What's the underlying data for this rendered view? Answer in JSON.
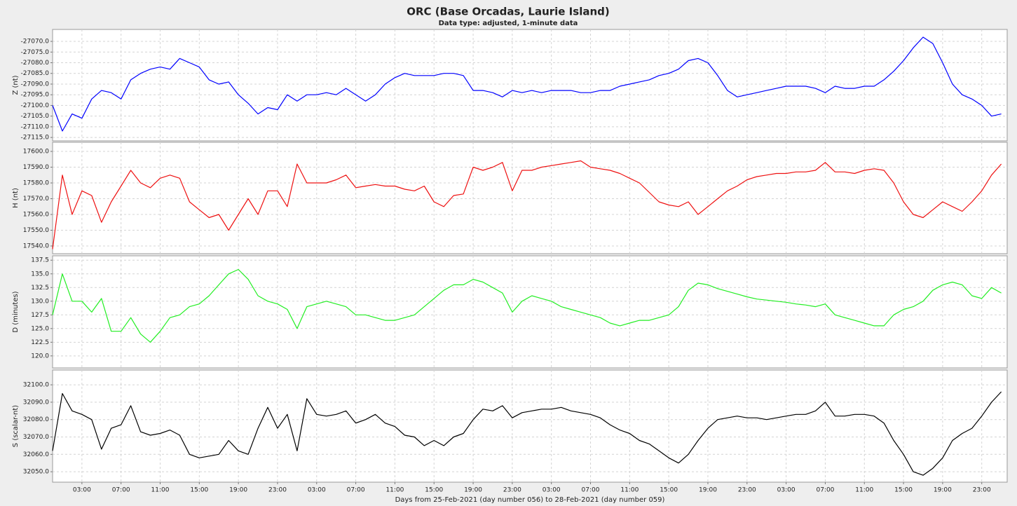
{
  "title": "ORC (Base Orcadas, Laurie Island)",
  "subtitle": "Data type: adjusted, 1-minute data",
  "chart_data": [
    {
      "type": "line",
      "ylabel": "Z (nt)",
      "color": "#0000ff",
      "grid": true,
      "ylim": [
        -27116.6,
        -27064.4
      ],
      "yticks": [
        {
          "value": -27070,
          "label": "-27070.0"
        },
        {
          "value": -27075,
          "label": "-27075.0"
        },
        {
          "value": -27080,
          "label": "-27080.0"
        },
        {
          "value": -27085,
          "label": "-27085.0"
        },
        {
          "value": -27090,
          "label": "-27090.0"
        },
        {
          "value": -27095,
          "label": "-27095.0"
        },
        {
          "value": -27100,
          "label": "-27100.0"
        },
        {
          "value": -27105,
          "label": "-27105.0"
        },
        {
          "value": -27110,
          "label": "-27110.0"
        },
        {
          "value": -27115,
          "label": "-27115.0"
        }
      ],
      "x": [
        0,
        1,
        2,
        3,
        4,
        5,
        6,
        7,
        8,
        9,
        10,
        11,
        12,
        13,
        14,
        15,
        16,
        17,
        18,
        19,
        20,
        21,
        22,
        23,
        24,
        25,
        26,
        27,
        28,
        29,
        30,
        31,
        32,
        33,
        34,
        35,
        36,
        37,
        38,
        39,
        40,
        41,
        42,
        43,
        44,
        45,
        46,
        47,
        48,
        49,
        50,
        51,
        52,
        53,
        54,
        55,
        56,
        57,
        58,
        59,
        60,
        61,
        62,
        63,
        64,
        65,
        66,
        67,
        68,
        69,
        70,
        71,
        72,
        73,
        74,
        75,
        76,
        77,
        78,
        79,
        80,
        81,
        82,
        83,
        84,
        85,
        86,
        87,
        88,
        89,
        90,
        91,
        92,
        93,
        94,
        95,
        96,
        97
      ],
      "values": [
        -27100,
        -27112,
        -27104,
        -27106,
        -27097,
        -27093,
        -27094,
        -27097,
        -27088,
        -27085,
        -27083,
        -27082,
        -27083,
        -27078,
        -27080,
        -27082,
        -27088,
        -27090,
        -27089,
        -27095,
        -27099,
        -27104,
        -27101,
        -27102,
        -27095,
        -27098,
        -27095,
        -27095,
        -27094,
        -27095,
        -27092,
        -27095,
        -27098,
        -27095,
        -27090,
        -27087,
        -27085,
        -27086,
        -27086,
        -27086,
        -27085,
        -27085,
        -27086,
        -27093,
        -27093,
        -27094,
        -27096,
        -27093,
        -27094,
        -27093,
        -27094,
        -27093,
        -27093,
        -27093,
        -27094,
        -27094,
        -27093,
        -27093,
        -27091,
        -27090,
        -27089,
        -27088,
        -27086,
        -27085,
        -27083,
        -27079,
        -27078,
        -27080,
        -27086,
        -27093,
        -27096,
        -27095,
        -27094,
        -27093,
        -27092,
        -27091,
        -27091,
        -27091,
        -27092,
        -27094,
        -27091,
        -27092,
        -27092,
        -27091,
        -27091,
        -27088,
        -27084,
        -27079,
        -27073,
        -27068,
        -27071,
        -27080,
        -27090,
        -27095,
        -27097,
        -27100,
        -27105,
        -27104
      ]
    },
    {
      "type": "line",
      "ylabel": "H (nt)",
      "color": "#ee1111",
      "grid": true,
      "ylim": [
        17535.1,
        17605.8
      ],
      "yticks": [
        {
          "value": 17540,
          "label": "17540.0"
        },
        {
          "value": 17550,
          "label": "17550.0"
        },
        {
          "value": 17560,
          "label": "17560.0"
        },
        {
          "value": 17570,
          "label": "17570.0"
        },
        {
          "value": 17580,
          "label": "17580.0"
        },
        {
          "value": 17590,
          "label": "17590.0"
        },
        {
          "value": 17600,
          "label": "17600.0"
        }
      ],
      "x": [
        0,
        1,
        2,
        3,
        4,
        5,
        6,
        7,
        8,
        9,
        10,
        11,
        12,
        13,
        14,
        15,
        16,
        17,
        18,
        19,
        20,
        21,
        22,
        23,
        24,
        25,
        26,
        27,
        28,
        29,
        30,
        31,
        32,
        33,
        34,
        35,
        36,
        37,
        38,
        39,
        40,
        41,
        42,
        43,
        44,
        45,
        46,
        47,
        48,
        49,
        50,
        51,
        52,
        53,
        54,
        55,
        56,
        57,
        58,
        59,
        60,
        61,
        62,
        63,
        64,
        65,
        66,
        67,
        68,
        69,
        70,
        71,
        72,
        73,
        74,
        75,
        76,
        77,
        78,
        79,
        80,
        81,
        82,
        83,
        84,
        85,
        86,
        87,
        88,
        89,
        90,
        91,
        92,
        93,
        94,
        95,
        96,
        97
      ],
      "values": [
        17538,
        17585,
        17560,
        17575,
        17572,
        17555,
        17568,
        17578,
        17588,
        17580,
        17577,
        17583,
        17585,
        17583,
        17568,
        17563,
        17558,
        17560,
        17550,
        17560,
        17570,
        17560,
        17575,
        17575,
        17565,
        17592,
        17580,
        17580,
        17580,
        17582,
        17585,
        17577,
        17578,
        17579,
        17578,
        17578,
        17576,
        17575,
        17578,
        17568,
        17565,
        17572,
        17573,
        17590,
        17588,
        17590,
        17593,
        17575,
        17588,
        17588,
        17590,
        17591,
        17592,
        17593,
        17594,
        17590,
        17589,
        17588,
        17586,
        17583,
        17580,
        17574,
        17568,
        17566,
        17565,
        17568,
        17560,
        17565,
        17570,
        17575,
        17578,
        17582,
        17584,
        17585,
        17586,
        17586,
        17587,
        17587,
        17588,
        17593,
        17587,
        17587,
        17586,
        17588,
        17589,
        17588,
        17580,
        17568,
        17560,
        17558,
        17563,
        17568,
        17565,
        17562,
        17568,
        17575,
        17585,
        17592
      ]
    },
    {
      "type": "line",
      "ylabel": "D (minutes)",
      "color": "#22ee22",
      "grid": true,
      "ylim": [
        117.8,
        138.3
      ],
      "yticks": [
        {
          "value": 120,
          "label": "120.0"
        },
        122.5,
        {
          "value": 125,
          "label": "125.0"
        },
        127.5,
        {
          "value": 130,
          "label": "130.0"
        },
        132.5,
        {
          "value": 135,
          "label": "135.0"
        },
        137.5
      ],
      "x": [
        0,
        1,
        2,
        3,
        4,
        5,
        6,
        7,
        8,
        9,
        10,
        11,
        12,
        13,
        14,
        15,
        16,
        17,
        18,
        19,
        20,
        21,
        22,
        23,
        24,
        25,
        26,
        27,
        28,
        29,
        30,
        31,
        32,
        33,
        34,
        35,
        36,
        37,
        38,
        39,
        40,
        41,
        42,
        43,
        44,
        45,
        46,
        47,
        48,
        49,
        50,
        51,
        52,
        53,
        54,
        55,
        56,
        57,
        58,
        59,
        60,
        61,
        62,
        63,
        64,
        65,
        66,
        67,
        68,
        69,
        70,
        71,
        72,
        73,
        74,
        75,
        76,
        77,
        78,
        79,
        80,
        81,
        82,
        83,
        84,
        85,
        86,
        87,
        88,
        89,
        90,
        91,
        92,
        93,
        94,
        95,
        96,
        97
      ],
      "values": [
        127.5,
        135,
        130,
        130,
        128,
        130.5,
        124.5,
        124.5,
        127,
        124,
        122.5,
        124.5,
        127,
        127.5,
        129,
        129.5,
        131,
        133,
        135,
        135.8,
        134,
        131,
        130,
        129.5,
        128.5,
        125,
        129,
        129.5,
        130,
        129.5,
        129,
        127.5,
        127.5,
        127,
        126.5,
        126.5,
        127,
        127.5,
        129,
        130.5,
        132,
        133,
        133,
        134,
        133.5,
        132.5,
        131.5,
        128,
        130,
        131,
        130.5,
        130,
        129,
        128.5,
        128,
        127.5,
        127,
        126,
        125.5,
        126,
        126.5,
        126.5,
        127,
        127.5,
        129,
        132,
        133.3,
        133,
        132.3,
        131.8,
        131.3,
        130.8,
        130.4,
        130.2,
        130,
        129.8,
        129.5,
        129.3,
        129,
        129.5,
        127.5,
        127,
        126.5,
        126,
        125.5,
        125.5,
        127.5,
        128.5,
        129,
        130,
        132,
        133,
        133.5,
        133,
        131,
        130.5,
        132.5,
        131.5
      ]
    },
    {
      "type": "line",
      "ylabel": "S (scalar-nt)",
      "color": "#000000",
      "grid": true,
      "xlabel": "Days from 25-Feb-2021 (day number 056) to 28-Feb-2021 (day number 059)",
      "ylim": [
        32044,
        32108.5
      ],
      "yticks": [
        {
          "value": 32050,
          "label": "32050.0"
        },
        {
          "value": 32060,
          "label": "32060.0"
        },
        {
          "value": 32070,
          "label": "32070.0"
        },
        {
          "value": 32080,
          "label": "32080.0"
        },
        {
          "value": 32090,
          "label": "32090.0"
        },
        {
          "value": 32100,
          "label": "32100.0"
        }
      ],
      "xlim": [
        0,
        97.6
      ],
      "xticks": [
        {
          "value": 3,
          "label": "03:00"
        },
        {
          "value": 7,
          "label": "07:00"
        },
        {
          "value": 11,
          "label": "11:00"
        },
        {
          "value": 15,
          "label": "15:00"
        },
        {
          "value": 19,
          "label": "19:00"
        },
        {
          "value": 23,
          "label": "23:00"
        },
        {
          "value": 27,
          "label": "03:00"
        },
        {
          "value": 31,
          "label": "07:00"
        },
        {
          "value": 35,
          "label": "11:00"
        },
        {
          "value": 39,
          "label": "15:00"
        },
        {
          "value": 43,
          "label": "19:00"
        },
        {
          "value": 47,
          "label": "23:00"
        },
        {
          "value": 51,
          "label": "03:00"
        },
        {
          "value": 55,
          "label": "07:00"
        },
        {
          "value": 59,
          "label": "11:00"
        },
        {
          "value": 63,
          "label": "15:00"
        },
        {
          "value": 67,
          "label": "19:00"
        },
        {
          "value": 71,
          "label": "23:00"
        },
        {
          "value": 75,
          "label": "03:00"
        },
        {
          "value": 79,
          "label": "07:00"
        },
        {
          "value": 83,
          "label": "11:00"
        },
        {
          "value": 87,
          "label": "15:00"
        },
        {
          "value": 91,
          "label": "19:00"
        },
        {
          "value": 95,
          "label": "23:00"
        }
      ],
      "x": [
        0,
        1,
        2,
        3,
        4,
        5,
        6,
        7,
        8,
        9,
        10,
        11,
        12,
        13,
        14,
        15,
        16,
        17,
        18,
        19,
        20,
        21,
        22,
        23,
        24,
        25,
        26,
        27,
        28,
        29,
        30,
        31,
        32,
        33,
        34,
        35,
        36,
        37,
        38,
        39,
        40,
        41,
        42,
        43,
        44,
        45,
        46,
        47,
        48,
        49,
        50,
        51,
        52,
        53,
        54,
        55,
        56,
        57,
        58,
        59,
        60,
        61,
        62,
        63,
        64,
        65,
        66,
        67,
        68,
        69,
        70,
        71,
        72,
        73,
        74,
        75,
        76,
        77,
        78,
        79,
        80,
        81,
        82,
        83,
        84,
        85,
        86,
        87,
        88,
        89,
        90,
        91,
        92,
        93,
        94,
        95,
        96,
        97
      ],
      "values": [
        32062,
        32095,
        32085,
        32083,
        32080,
        32063,
        32075,
        32077,
        32088,
        32073,
        32071,
        32072,
        32074,
        32071,
        32060,
        32058,
        32059,
        32060,
        32068,
        32062,
        32060,
        32075,
        32087,
        32075,
        32083,
        32062,
        32092,
        32083,
        32082,
        32083,
        32085,
        32078,
        32080,
        32083,
        32078,
        32076,
        32071,
        32070,
        32065,
        32068,
        32065,
        32070,
        32072,
        32080,
        32086,
        32085,
        32088,
        32081,
        32084,
        32085,
        32086,
        32086,
        32087,
        32085,
        32084,
        32083,
        32081,
        32077,
        32074,
        32072,
        32068,
        32066,
        32062,
        32058,
        32055,
        32060,
        32068,
        32075,
        32080,
        32081,
        32082,
        32081,
        32081,
        32080,
        32081,
        32082,
        32083,
        32083,
        32085,
        32090,
        32082,
        32082,
        32083,
        32083,
        32082,
        32078,
        32068,
        32060,
        32050,
        32048,
        32052,
        32058,
        32068,
        32072,
        32075,
        32082,
        32090,
        32096
      ]
    }
  ]
}
